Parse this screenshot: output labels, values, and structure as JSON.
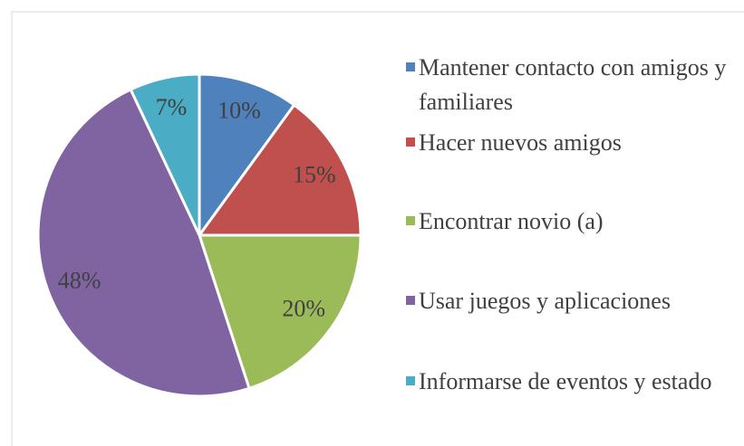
{
  "chart_data": {
    "type": "pie",
    "categories": [
      "Mantener contacto con amigos y familiares",
      "Hacer nuevos amigos",
      "Encontrar novio (a)",
      "Usar juegos y aplicaciones",
      "Informarse de eventos y estado"
    ],
    "values": [
      10,
      15,
      20,
      48,
      7
    ],
    "value_labels": [
      "10%",
      "15%",
      "20%",
      "48%",
      "7%"
    ],
    "colors": [
      "#4f81bd",
      "#c0504d",
      "#9bbb59",
      "#8064a2",
      "#4bacc6"
    ],
    "legend": "right"
  }
}
